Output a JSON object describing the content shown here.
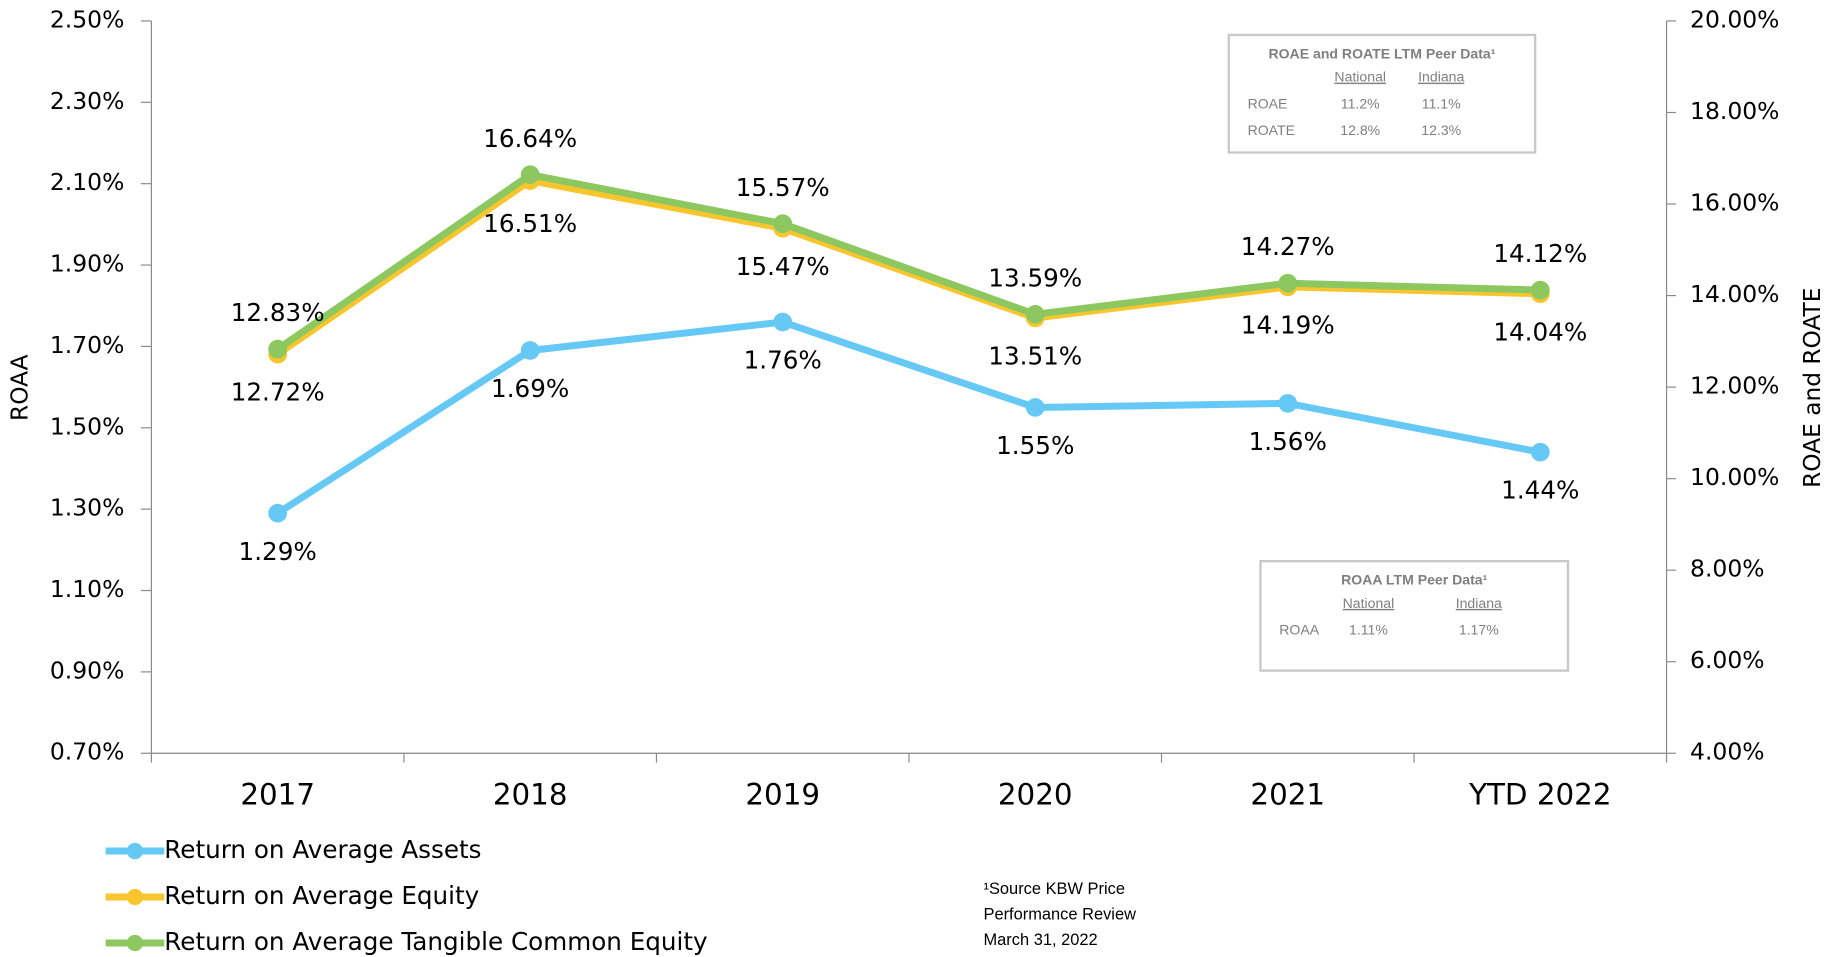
{
  "chart_data": {
    "type": "line",
    "categories": [
      "2017",
      "2018",
      "2019",
      "2020",
      "2021",
      "YTD 2022"
    ],
    "ylabel": "ROAA",
    "y2label": "ROAE and ROATE",
    "ylim": [
      0.7,
      2.5
    ],
    "yticks": [
      {
        "value": 0.7,
        "label": "0.70%"
      },
      {
        "value": 0.9,
        "label": "0.90%"
      },
      {
        "value": 1.1,
        "label": "1.10%"
      },
      {
        "value": 1.3,
        "label": "1.30%"
      },
      {
        "value": 1.5,
        "label": "1.50%"
      },
      {
        "value": 1.7,
        "label": "1.70%"
      },
      {
        "value": 1.9,
        "label": "1.90%"
      },
      {
        "value": 2.1,
        "label": "2.10%"
      },
      {
        "value": 2.3,
        "label": "2.30%"
      },
      {
        "value": 2.5,
        "label": "2.50%"
      }
    ],
    "y2lim": [
      4,
      20
    ],
    "y2ticks": [
      {
        "value": 4,
        "label": "4.00%"
      },
      {
        "value": 6,
        "label": "6.00%"
      },
      {
        "value": 8,
        "label": "8.00%"
      },
      {
        "value": 10,
        "label": "10.00%"
      },
      {
        "value": 12,
        "label": "12.00%"
      },
      {
        "value": 14,
        "label": "14.00%"
      },
      {
        "value": 16,
        "label": "16.00%"
      },
      {
        "value": 18,
        "label": "18.00%"
      },
      {
        "value": 20,
        "label": "20.00%"
      }
    ],
    "series": [
      {
        "name": "Return on Average Assets",
        "color": "#66c9f5",
        "axis": "y",
        "values": [
          1.29,
          1.69,
          1.76,
          1.55,
          1.56,
          1.44
        ],
        "value_labels": [
          "1.29%",
          "1.69%",
          "1.76%",
          "1.55%",
          "1.56%",
          "1.44%"
        ]
      },
      {
        "name": "Return on Average Equity",
        "color": "#f7c62f",
        "axis": "y2",
        "values": [
          12.72,
          16.51,
          15.47,
          13.51,
          14.19,
          14.04
        ],
        "value_labels": [
          "12.72%",
          "16.51%",
          "15.47%",
          "13.51%",
          "14.19%",
          "14.04%"
        ]
      },
      {
        "name": "Return on Average Tangible Common Equity",
        "color": "#8dc760",
        "axis": "y2",
        "values": [
          12.83,
          16.64,
          15.57,
          13.59,
          14.27,
          14.12
        ],
        "value_labels": [
          "12.83%",
          "16.64%",
          "15.57%",
          "13.59%",
          "14.27%",
          "14.12%"
        ]
      }
    ],
    "inset_tables": [
      {
        "title": "ROAE and ROATE LTM Peer Data¹",
        "columns": [
          "National",
          "Indiana"
        ],
        "rows": [
          [
            "ROAE",
            "11.2%",
            "11.1%"
          ],
          [
            "ROATE",
            "12.8%",
            "12.3%"
          ]
        ]
      },
      {
        "title": "ROAA LTM Peer Data¹",
        "columns": [
          "National",
          "Indiana"
        ],
        "rows": [
          [
            "ROAA",
            "1.11%",
            "1.17%"
          ]
        ]
      }
    ],
    "footnote": [
      "¹Source KBW Price",
      "Performance Review",
      "March 31, 2022"
    ]
  }
}
